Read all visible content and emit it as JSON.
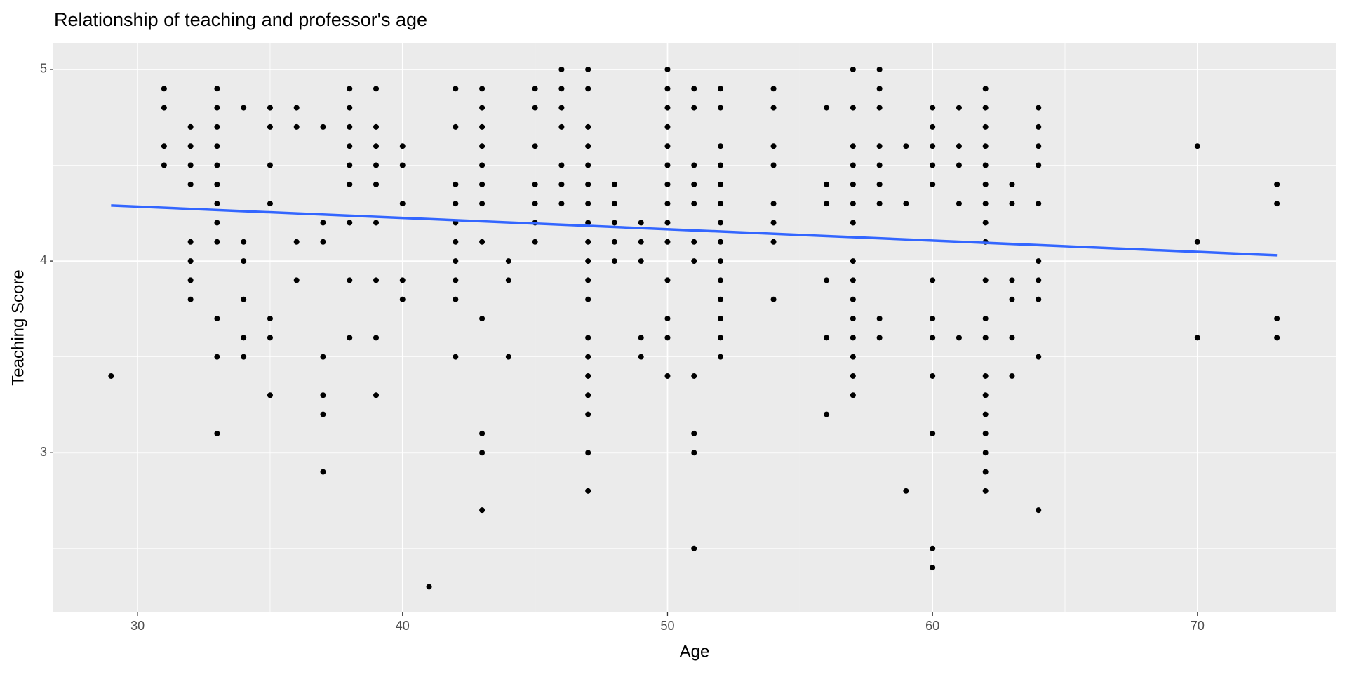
{
  "chart_data": {
    "type": "scatter",
    "title": "Relationship of teaching and professor's age",
    "x_label": "Age",
    "y_label": "Teaching Score",
    "xlim": [
      26.82,
      75.22
    ],
    "ylim": [
      2.166,
      5.139
    ],
    "xticks": [
      30,
      40,
      50,
      60,
      70
    ],
    "yticks": [
      3,
      4,
      5
    ],
    "minor_xgrid": [
      35,
      45,
      55,
      65
    ],
    "minor_ygrid": [
      2.5,
      3.5,
      4.5
    ],
    "grid": true,
    "color": "#000000",
    "x": [
      29,
      31,
      31,
      31,
      31,
      32,
      32,
      32,
      32,
      32,
      32,
      32,
      32,
      33,
      33,
      33,
      33,
      33,
      33,
      33,
      33,
      33,
      33,
      33,
      33,
      34,
      34,
      34,
      34,
      34,
      34,
      35,
      35,
      35,
      35,
      35,
      35,
      35,
      36,
      36,
      36,
      36,
      37,
      37,
      37,
      37,
      37,
      37,
      37,
      38,
      38,
      38,
      38,
      38,
      38,
      38,
      38,
      38,
      39,
      39,
      39,
      39,
      39,
      39,
      39,
      39,
      39,
      40,
      40,
      40,
      40,
      40,
      41,
      42,
      42,
      42,
      42,
      42,
      42,
      42,
      42,
      42,
      42,
      43,
      43,
      43,
      43,
      43,
      43,
      43,
      43,
      43,
      43,
      43,
      43,
      44,
      44,
      44,
      45,
      45,
      45,
      45,
      45,
      45,
      45,
      46,
      46,
      46,
      46,
      46,
      46,
      46,
      47,
      47,
      47,
      47,
      47,
      47,
      47,
      47,
      47,
      47,
      47,
      47,
      47,
      47,
      47,
      47,
      47,
      47,
      47,
      48,
      48,
      48,
      48,
      48,
      49,
      49,
      49,
      49,
      49,
      50,
      50,
      50,
      50,
      50,
      50,
      50,
      50,
      50,
      50,
      50,
      50,
      50,
      50,
      51,
      51,
      51,
      51,
      51,
      51,
      51,
      51,
      51,
      51,
      51,
      52,
      52,
      52,
      52,
      52,
      52,
      52,
      52,
      52,
      52,
      52,
      52,
      52,
      52,
      54,
      54,
      54,
      54,
      54,
      54,
      54,
      54,
      56,
      56,
      56,
      56,
      56,
      56,
      57,
      57,
      57,
      57,
      57,
      57,
      57,
      57,
      57,
      57,
      57,
      57,
      57,
      57,
      57,
      58,
      58,
      58,
      58,
      58,
      58,
      58,
      58,
      58,
      59,
      59,
      59,
      60,
      60,
      60,
      60,
      60,
      60,
      60,
      60,
      60,
      60,
      60,
      60,
      61,
      61,
      61,
      61,
      61,
      62,
      62,
      62,
      62,
      62,
      62,
      62,
      62,
      62,
      62,
      62,
      62,
      62,
      62,
      62,
      62,
      62,
      62,
      62,
      63,
      63,
      63,
      63,
      63,
      63,
      64,
      64,
      64,
      64,
      64,
      64,
      64,
      64,
      64,
      64,
      70,
      70,
      70,
      73,
      73,
      73,
      73
    ],
    "y": [
      3.4,
      4.9,
      4.8,
      4.6,
      4.5,
      4.7,
      4.6,
      4.5,
      4.4,
      4.1,
      4.0,
      3.9,
      3.8,
      4.9,
      4.8,
      4.7,
      4.6,
      4.5,
      4.4,
      4.3,
      4.2,
      4.1,
      3.7,
      3.5,
      3.1,
      4.8,
      4.1,
      4.0,
      3.8,
      3.6,
      3.5,
      4.8,
      4.7,
      4.5,
      4.3,
      3.7,
      3.6,
      3.3,
      4.8,
      4.7,
      4.1,
      3.9,
      4.7,
      4.2,
      4.1,
      3.5,
      3.3,
      3.2,
      2.9,
      4.9,
      4.8,
      4.7,
      4.6,
      4.5,
      4.4,
      4.2,
      3.9,
      3.6,
      4.9,
      4.7,
      4.6,
      4.5,
      4.4,
      4.2,
      3.9,
      3.6,
      3.3,
      4.6,
      4.5,
      4.3,
      3.9,
      3.8,
      2.3,
      4.9,
      4.7,
      4.4,
      4.3,
      4.2,
      4.1,
      4.0,
      3.9,
      3.8,
      3.5,
      4.9,
      4.8,
      4.7,
      4.6,
      4.5,
      4.4,
      4.3,
      4.1,
      3.7,
      3.1,
      3.0,
      2.7,
      4.0,
      3.9,
      3.5,
      4.9,
      4.8,
      4.6,
      4.4,
      4.3,
      4.2,
      4.1,
      5.0,
      4.9,
      4.8,
      4.7,
      4.5,
      4.4,
      4.3,
      5.0,
      4.9,
      4.7,
      4.6,
      4.5,
      4.4,
      4.3,
      4.2,
      4.1,
      4.0,
      3.9,
      3.8,
      3.6,
      3.5,
      3.4,
      3.3,
      3.2,
      3.0,
      2.8,
      4.4,
      4.3,
      4.2,
      4.1,
      4.0,
      4.2,
      4.1,
      4.0,
      3.6,
      3.5,
      5.0,
      4.9,
      4.8,
      4.7,
      4.6,
      4.5,
      4.4,
      4.3,
      4.2,
      4.1,
      3.9,
      3.7,
      3.6,
      3.4,
      4.9,
      4.8,
      4.5,
      4.4,
      4.3,
      4.1,
      4.0,
      3.4,
      3.1,
      3.0,
      2.5,
      4.9,
      4.8,
      4.6,
      4.5,
      4.4,
      4.3,
      4.2,
      4.1,
      4.0,
      3.9,
      3.8,
      3.7,
      3.6,
      3.5,
      4.9,
      4.8,
      4.6,
      4.5,
      4.3,
      4.2,
      4.1,
      3.8,
      4.8,
      4.4,
      4.3,
      3.9,
      3.6,
      3.2,
      5.0,
      4.8,
      4.6,
      4.5,
      4.4,
      4.3,
      4.2,
      4.0,
      3.9,
      3.8,
      3.7,
      3.6,
      3.5,
      3.4,
      3.3,
      5.0,
      4.9,
      4.8,
      4.6,
      4.5,
      4.4,
      4.3,
      3.7,
      3.6,
      4.6,
      4.3,
      2.8,
      4.8,
      4.7,
      4.6,
      4.5,
      4.4,
      3.9,
      3.7,
      3.6,
      3.4,
      3.1,
      2.5,
      2.4,
      4.8,
      4.6,
      4.5,
      4.3,
      3.6,
      4.9,
      4.8,
      4.7,
      4.6,
      4.5,
      4.4,
      4.3,
      4.2,
      4.1,
      3.9,
      3.7,
      3.6,
      3.4,
      3.3,
      3.2,
      3.1,
      3.0,
      2.9,
      2.8,
      4.4,
      4.3,
      3.9,
      3.8,
      3.6,
      3.4,
      4.8,
      4.7,
      4.6,
      4.5,
      4.3,
      4.0,
      3.9,
      3.8,
      3.5,
      2.7,
      4.6,
      4.1,
      3.6,
      4.4,
      4.3,
      3.7,
      3.6
    ],
    "trend": {
      "x": [
        29,
        73
      ],
      "y": [
        4.29,
        4.03
      ],
      "color": "#3366ff"
    }
  }
}
